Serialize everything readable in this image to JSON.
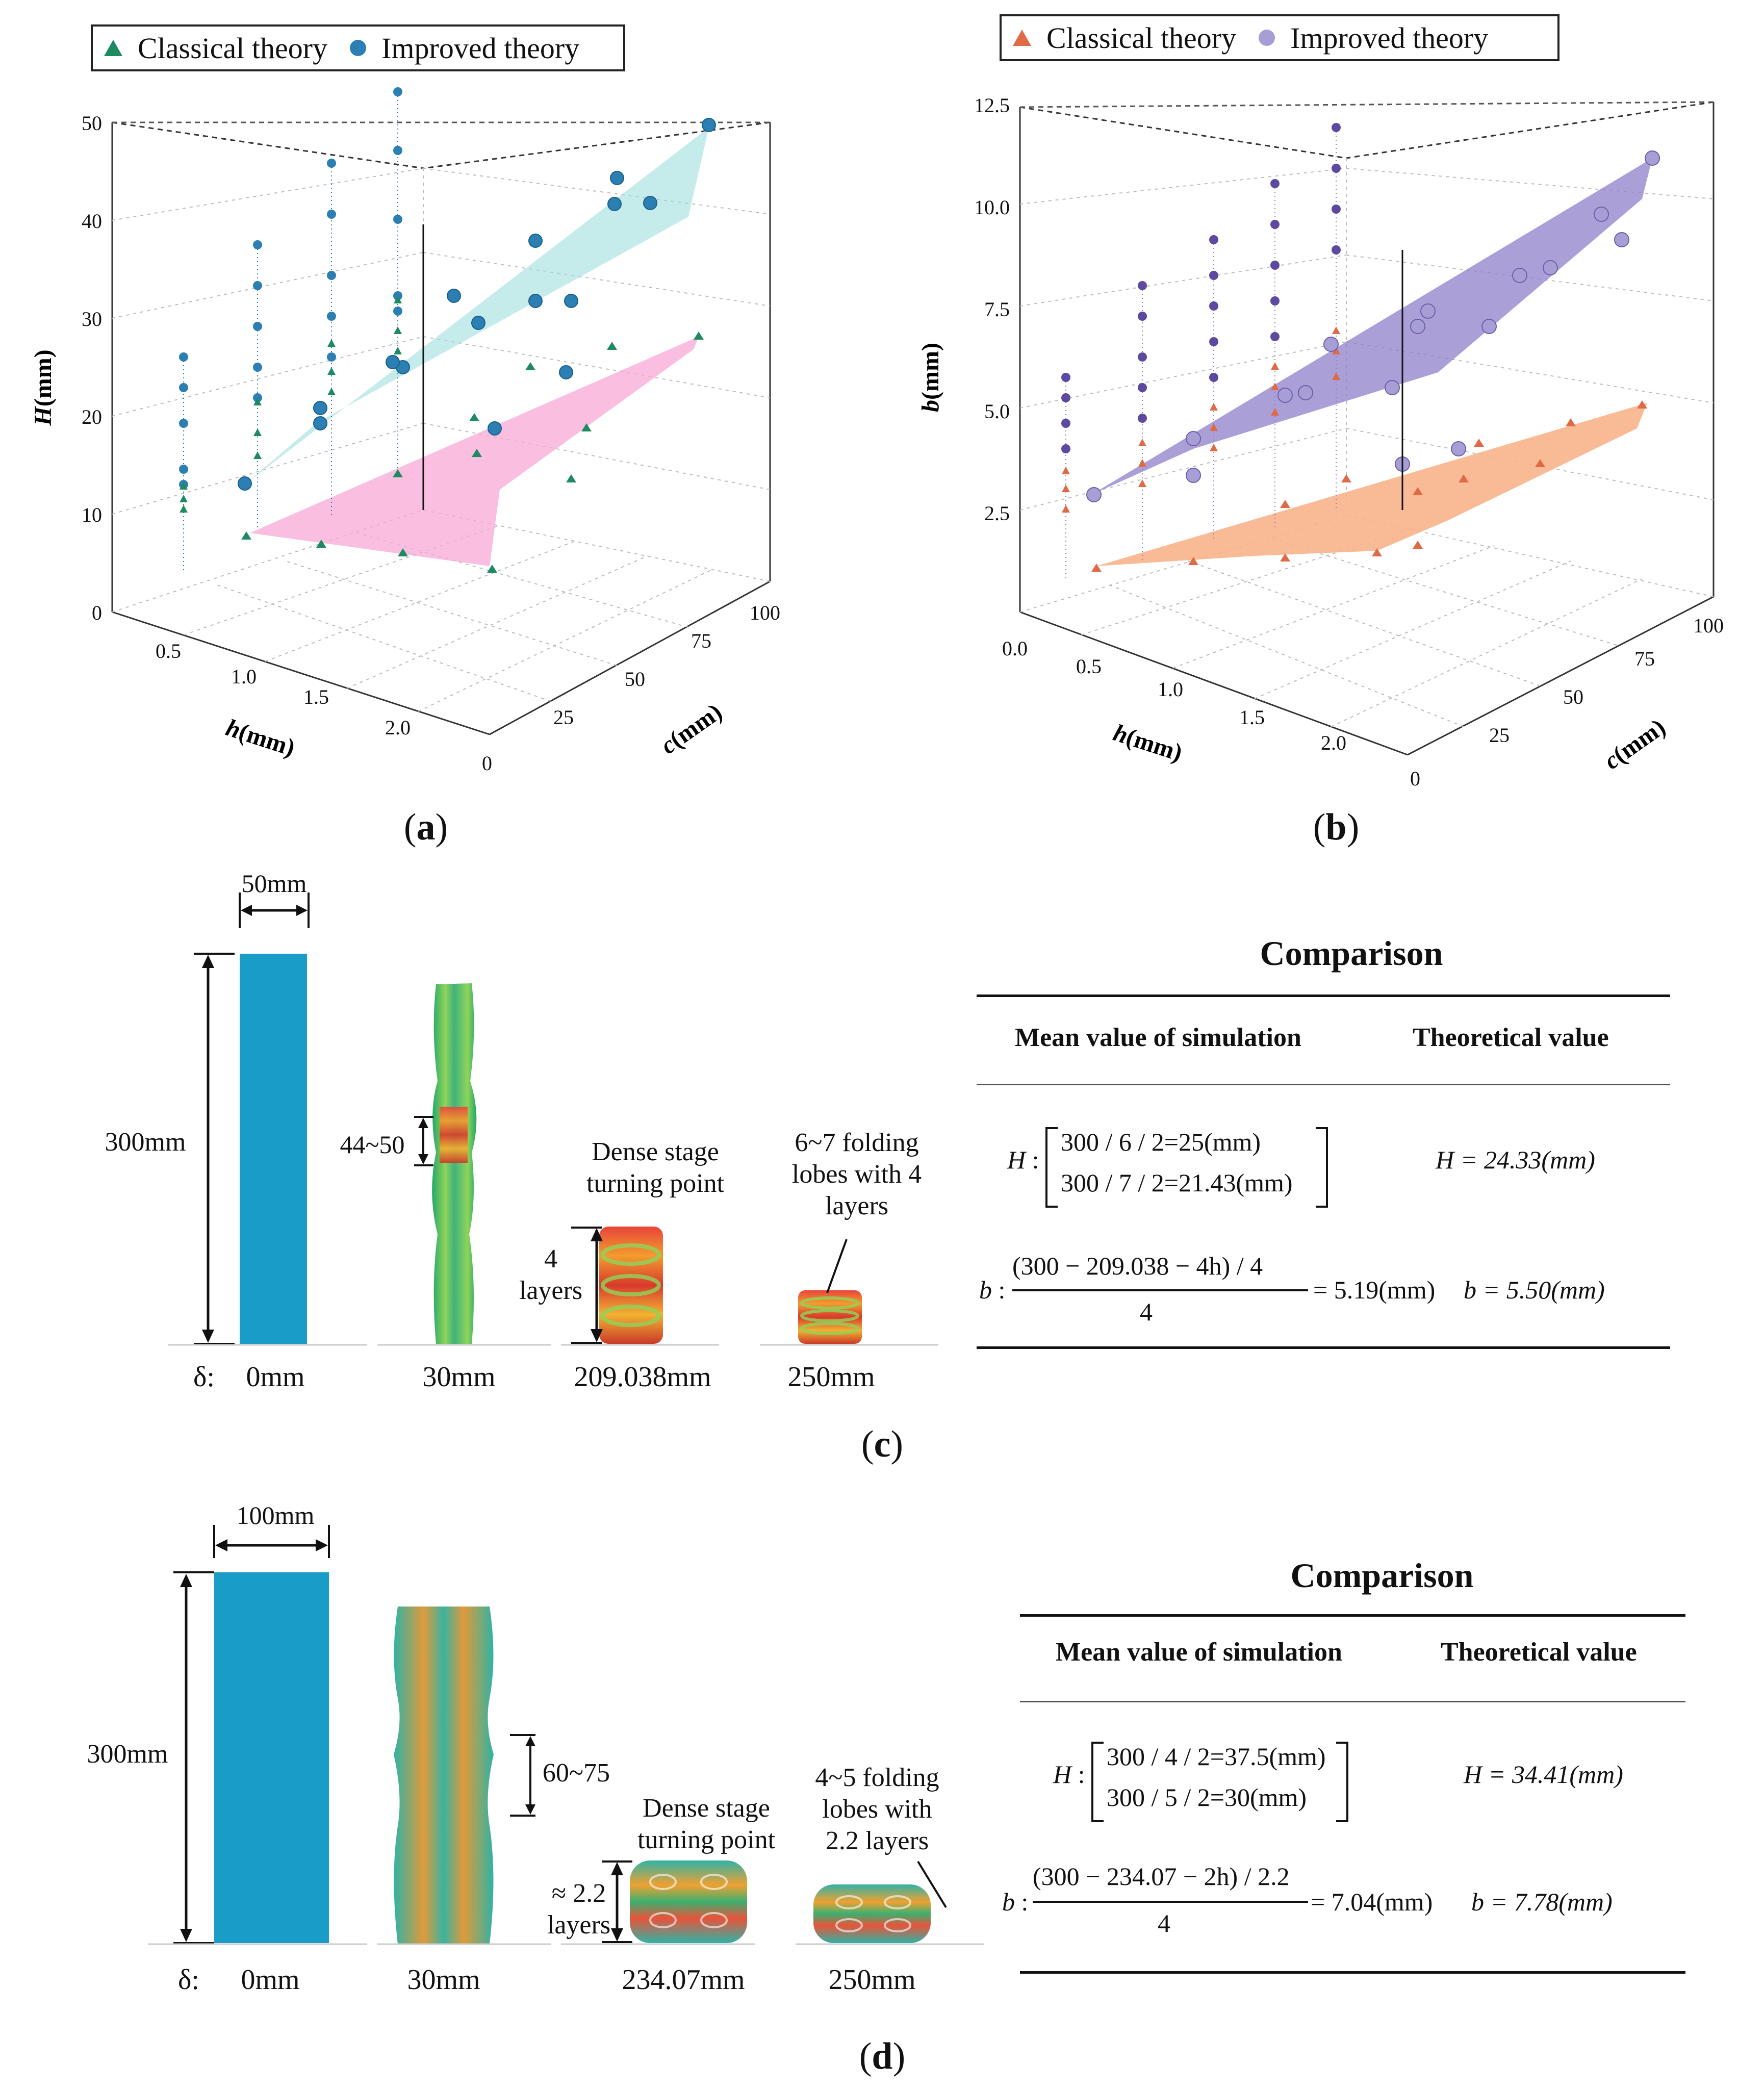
{
  "panels": {
    "a_label": "a",
    "b_label": "b",
    "c_label": "c",
    "d_label": "d"
  },
  "legend": {
    "classical": "Classical theory",
    "improved": "Improved theory"
  },
  "colors": {
    "classical_a": "#1e8a62",
    "improved_a": "#2b7fb3",
    "surface_improved_a": "#9fe0de",
    "surface_classical_a": "#f7a8d6",
    "classical_b": "#e06a45",
    "improved_b": "#8f7fc4",
    "surface_improved_b": "#8f7fcb",
    "surface_classical_b": "#f8b48a"
  },
  "chart_data": [
    {
      "type": "scatter3d",
      "panel": "a",
      "zlabel_italic": "H",
      "zlabel_unit": "(mm)",
      "xlabel_italic": "h",
      "xlabel_unit": "(mm)",
      "ylabel_italic": "c",
      "ylabel_unit": "(mm)",
      "z_ticks": [
        "0",
        "10",
        "20",
        "30",
        "40",
        "50"
      ],
      "x_ticks": [
        "0.5",
        "1.0",
        "1.5",
        "2.0"
      ],
      "y_ticks": [
        "0",
        "25",
        "50",
        "75",
        "100"
      ],
      "zlim": [
        0,
        50
      ],
      "xlim": [
        0.25,
        2.25
      ],
      "ylim": [
        0,
        110
      ],
      "series": [
        {
          "name": "Classical theory",
          "plane_corners_z": [
            7.5,
            28,
            3.5,
            27.5
          ]
        },
        {
          "name": "Improved theory",
          "plane_corners_z": [
            12.5,
            48.5,
            22,
            45
          ]
        }
      ]
    },
    {
      "type": "scatter3d",
      "panel": "b",
      "zlabel_italic": "b",
      "zlabel_unit": "(mm)",
      "xlabel_italic": "h",
      "xlabel_unit": "(mm)",
      "ylabel_italic": "c",
      "ylabel_unit": "(mm)",
      "z_ticks": [
        "2.5",
        "5.0",
        "7.5",
        "10.0",
        "12.5"
      ],
      "x_ticks": [
        "0.0",
        "0.5",
        "1.0",
        "1.5",
        "2.0"
      ],
      "y_ticks": [
        "0",
        "25",
        "50",
        "75",
        "100"
      ],
      "zlim": [
        0,
        12.5
      ],
      "xlim": [
        0,
        2.25
      ],
      "ylim": [
        0,
        110
      ],
      "series": [
        {
          "name": "Classical theory",
          "plane_corners_z": [
            1.5,
            5.5,
            1.2,
            5.3
          ]
        },
        {
          "name": "Improved theory",
          "plane_corners_z": [
            2.8,
            11.2,
            4.7,
            10.5
          ]
        }
      ]
    }
  ],
  "panel_c": {
    "width_dim": "50mm",
    "height_dim": "300mm",
    "lobe_dim": "44~50",
    "dense_annot": [
      "Dense stage",
      "turning point"
    ],
    "layers_annot": [
      "4",
      "layers"
    ],
    "folding_annot": [
      "6~7 folding",
      "lobes with 4",
      "layers"
    ],
    "delta_symbol": "δ:",
    "deltas": [
      "0mm",
      "30mm",
      "209.038mm",
      "250mm"
    ],
    "table": {
      "title": "Comparison",
      "col1": "Mean value of simulation",
      "col2": "Theoretical value",
      "H_sim_1": "300 / 6 / 2=25(mm)",
      "H_sim_2": "300 / 7 / 2=21.43(mm)",
      "H_theory": "H = 24.33(mm)",
      "b_num": "(300 − 209.038 − 4h) / 4",
      "b_den": "4",
      "b_sim_result": "= 5.19(mm)",
      "b_theory": "b = 5.50(mm)"
    }
  },
  "panel_d": {
    "width_dim": "100mm",
    "height_dim": "300mm",
    "lobe_dim": "60~75",
    "dense_annot": [
      "Dense stage",
      "turning point"
    ],
    "layers_annot": [
      "≈ 2.2",
      "layers"
    ],
    "folding_annot": [
      "4~5 folding",
      "lobes with",
      "2.2 layers"
    ],
    "delta_symbol": "δ:",
    "deltas": [
      "0mm",
      "30mm",
      "234.07mm",
      "250mm"
    ],
    "table": {
      "title": "Comparison",
      "col1": "Mean value of simulation",
      "col2": "Theoretical value",
      "H_sim_1": "300 / 4 / 2=37.5(mm)",
      "H_sim_2": "300 / 5 / 2=30(mm)",
      "H_theory": "H = 34.41(mm)",
      "b_num": "(300 − 234.07 − 2h) / 2.2",
      "b_den": "4",
      "b_sim_result": "= 7.04(mm)",
      "b_theory": "b = 7.78(mm)"
    }
  },
  "labels": {
    "H": "H",
    "b": "b"
  }
}
